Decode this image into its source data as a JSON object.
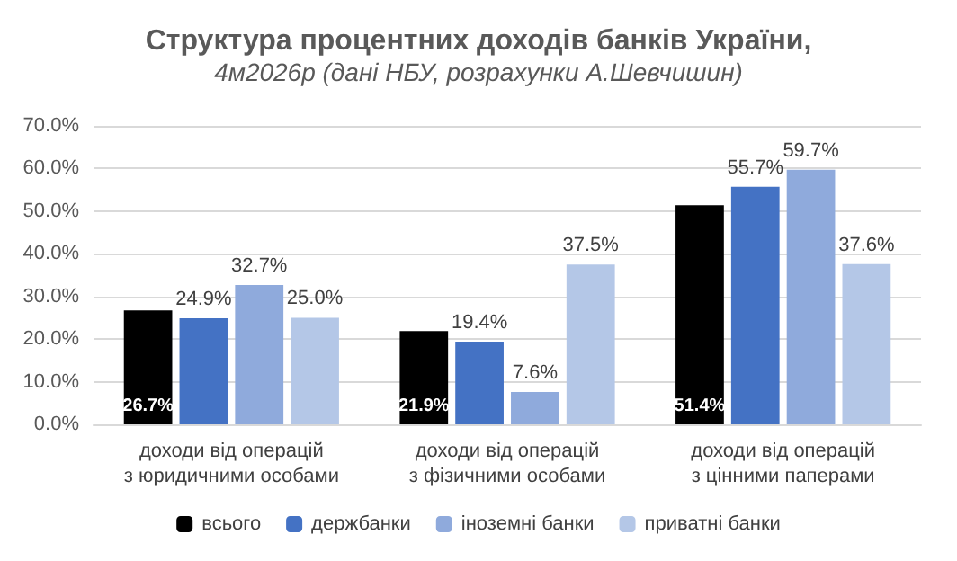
{
  "chart_data": {
    "type": "bar",
    "title": "Структура процентних доходів банків України,",
    "subtitle": "4м2026р (дані НБУ, розрахунки А.Шевчишин)",
    "categories": [
      "доходи від операцій з юридичними особами",
      "доходи від операцій з фізичними особами",
      "доходи від операцій з цінними паперами"
    ],
    "series": [
      {
        "name": "всього",
        "color": "#000000",
        "values": [
          26.7,
          21.9,
          51.4
        ],
        "value_labels": [
          "26.7%",
          "21.9%",
          "51.4%"
        ]
      },
      {
        "name": "держбанки",
        "color": "#4472c4",
        "values": [
          24.9,
          19.4,
          55.7
        ],
        "value_labels": [
          "24.9%",
          "19.4%",
          "55.7%"
        ]
      },
      {
        "name": "іноземні банки",
        "color": "#8faadc",
        "values": [
          32.7,
          7.6,
          59.7
        ],
        "value_labels": [
          "32.7%",
          "7.6%",
          "59.7%"
        ]
      },
      {
        "name": "приватні банки",
        "color": "#b4c7e7",
        "values": [
          25.0,
          37.5,
          37.6
        ],
        "value_labels": [
          "25.0%",
          "37.5%",
          "37.6%"
        ]
      }
    ],
    "ylim": [
      0,
      70
    ],
    "yticks": [
      {
        "value": 0,
        "label": "0.0%"
      },
      {
        "value": 10,
        "label": "10.0%"
      },
      {
        "value": 20,
        "label": "20.0%"
      },
      {
        "value": 30,
        "label": "30.0%"
      },
      {
        "value": 40,
        "label": "40.0%"
      },
      {
        "value": 50,
        "label": "50.0%"
      },
      {
        "value": 60,
        "label": "60.0%"
      },
      {
        "value": 70,
        "label": "70.0%"
      }
    ],
    "grid": "y",
    "legend": "bottom"
  }
}
